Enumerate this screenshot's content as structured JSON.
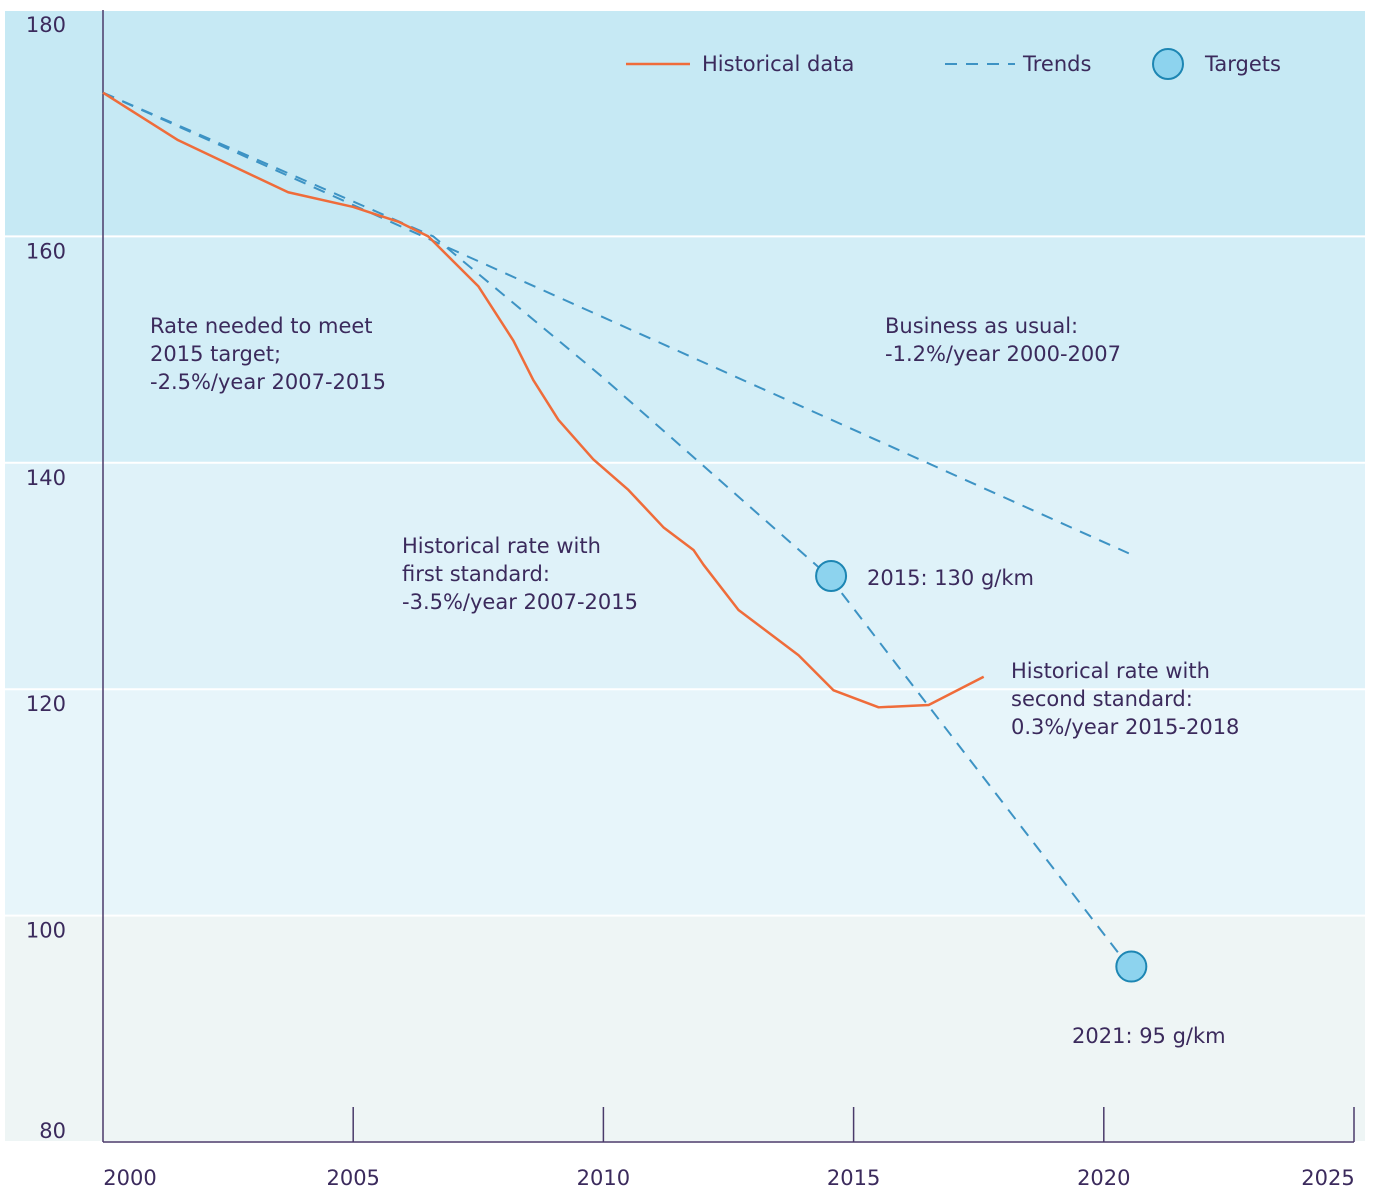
{
  "chart_data": {
    "type": "line",
    "xlim": [
      2000,
      2025
    ],
    "ylim": [
      80,
      180
    ],
    "xticks": [
      2000,
      2005,
      2010,
      2015,
      2020,
      2025
    ],
    "yticks": [
      80,
      100,
      120,
      140,
      160,
      180
    ],
    "band_colors": [
      "#eef5f5",
      "#e7f5fa",
      "#dff2f9",
      "#d3eef7",
      "#c6e9f4"
    ],
    "series": [
      {
        "name": "Historical data",
        "color": "#ef6c3a",
        "x": [
          2000,
          2001.5,
          2003.7,
          2005,
          2005.9,
          2006.5,
          2007.5,
          2008.2,
          2008.6,
          2009.1,
          2009.8,
          2010.5,
          2011.2,
          2011.8,
          2012.0,
          2012.7,
          2013.9,
          2014.6,
          2015.5,
          2016.5,
          2017.6
        ],
        "values": [
          172.7,
          168.5,
          163.9,
          162.6,
          161.3,
          160,
          155.6,
          150.8,
          147.3,
          143.8,
          140.3,
          137.6,
          134.3,
          132.3,
          131,
          127,
          123,
          119.9,
          118.4,
          118.6,
          121.1
        ]
      }
    ],
    "trends": {
      "name": "Trends",
      "color": "#3d93c4",
      "lines": [
        {
          "x": [
            2000,
            2020.5
          ],
          "values": [
            172.7,
            132
          ]
        },
        {
          "x": [
            2000,
            2006.6,
            2010,
            2014.5,
            2020.5
          ],
          "values": [
            172.7,
            160,
            147.5,
            130,
            95.5
          ]
        }
      ]
    },
    "targets": {
      "name": "Targets",
      "color": "#8dd3ee",
      "edge": "#1d86b3",
      "x": [
        2014.55,
        2020.55
      ],
      "values": [
        130,
        95.5
      ],
      "labels": [
        "2015: 130 g/km",
        "2021: 95 g/km"
      ]
    },
    "annotations": [
      [
        "Rate needed to meet",
        "2015 target;",
        "-2.5%/year 2007-2015"
      ],
      [
        "Business as usual:",
        "-1.2%/year 2000-2007"
      ],
      [
        "Historical rate with",
        "first standard:",
        "-3.5%/year 2007-2015"
      ],
      [
        "Historical rate with",
        "second standard:",
        "0.3%/year 2015-2018"
      ]
    ]
  }
}
